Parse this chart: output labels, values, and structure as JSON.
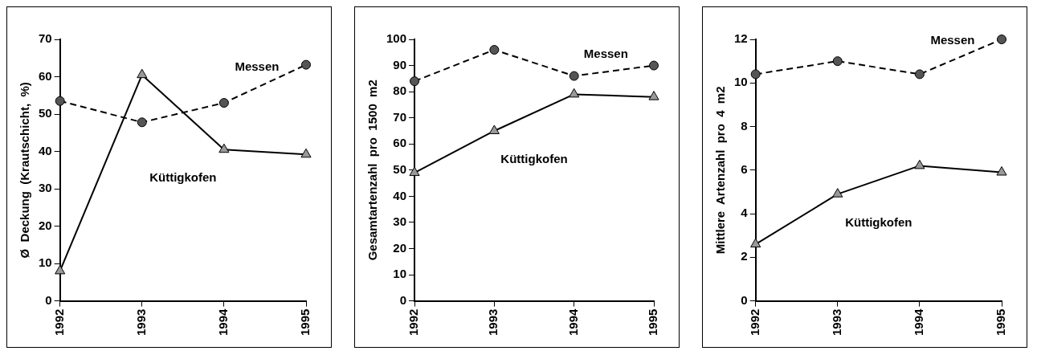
{
  "chart_data": [
    {
      "type": "line",
      "ylabel": "Ø  Deckung  (Krautschicht,  %)",
      "categories": [
        "1992",
        "1993",
        "1994",
        "1995"
      ],
      "ylim": [
        0,
        70
      ],
      "yticks": [
        0,
        10,
        20,
        30,
        40,
        50,
        60,
        70
      ],
      "grid": false,
      "legend": false,
      "series": [
        {
          "name": "Messen",
          "color": "#555555",
          "values": [
            53.5,
            47.8,
            53,
            63.2
          ],
          "marker": "circle",
          "line_style": "dashed"
        },
        {
          "name": "Küttigkofen",
          "color": "#999999",
          "values": [
            8,
            60.5,
            40.5,
            39.2
          ],
          "marker": "triangle",
          "line_style": "solid"
        }
      ]
    },
    {
      "type": "line",
      "ylabel": "Gesamtartenzahl  pro  1500  m2",
      "categories": [
        "1992",
        "1993",
        "1994",
        "1995"
      ],
      "ylim": [
        0,
        100
      ],
      "yticks": [
        0,
        10,
        20,
        30,
        40,
        50,
        60,
        70,
        80,
        90,
        100
      ],
      "grid": false,
      "legend": false,
      "series": [
        {
          "name": "Messen",
          "color": "#555555",
          "values": [
            84,
            96,
            86,
            90
          ],
          "marker": "circle",
          "line_style": "dashed"
        },
        {
          "name": "Küttigkofen",
          "color": "#999999",
          "values": [
            49,
            65,
            79,
            78
          ],
          "marker": "triangle",
          "line_style": "solid"
        }
      ]
    },
    {
      "type": "line",
      "ylabel": "Mittlere  Artenzahl  pro  4  m2",
      "categories": [
        "1992",
        "1993",
        "1994",
        "1995"
      ],
      "ylim": [
        0,
        12
      ],
      "yticks": [
        0,
        2,
        4,
        6,
        8,
        10,
        12
      ],
      "grid": false,
      "legend": false,
      "series": [
        {
          "name": "Messen",
          "color": "#555555",
          "values": [
            10.4,
            11,
            10.4,
            12
          ],
          "marker": "circle",
          "line_style": "dashed"
        },
        {
          "name": "Küttigkofen",
          "color": "#999999",
          "values": [
            2.6,
            4.9,
            6.2,
            5.9
          ],
          "marker": "triangle",
          "line_style": "solid"
        }
      ]
    }
  ]
}
